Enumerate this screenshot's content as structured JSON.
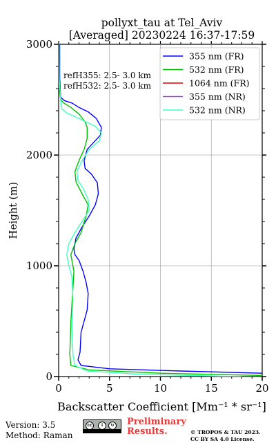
{
  "chart_data": {
    "type": "line",
    "title": [
      "pollyxt_tau at Tel_Aviv",
      "[Averaged] 20230224 16:37-17:59"
    ],
    "xlabel": "Backscatter Coefficient [Mm⁻¹ * sr⁻¹]",
    "ylabel": "Height (m)",
    "xlim": [
      0,
      20
    ],
    "ylim": [
      0,
      3000
    ],
    "xticks": [
      0,
      5,
      10,
      15,
      20
    ],
    "yticks": [
      0,
      1000,
      2000,
      3000
    ],
    "grid": true,
    "legend_position": "top-right",
    "annotations": [
      "refH355:  2.5- 3.0 km",
      "refH532:  2.5- 3.0 km"
    ],
    "series": [
      {
        "name": "355 nm (FR)",
        "color": "#0000ff",
        "x": [
          20,
          12,
          5,
          2.2,
          1.9,
          2.1,
          2.2,
          2.8,
          2.9,
          2.7,
          2.4,
          2.0,
          1.6,
          1.5,
          1.7,
          2.3,
          3.0,
          3.6,
          3.9,
          3.8,
          3.2,
          2.6,
          2.5,
          2.8,
          3.6,
          4.1,
          4.2,
          3.7,
          2.9,
          2.0,
          1.3,
          0.6,
          0.2,
          0.1,
          0.1
        ],
        "y": [
          30,
          50,
          70,
          100,
          150,
          220,
          400,
          600,
          750,
          850,
          950,
          1050,
          1100,
          1150,
          1250,
          1350,
          1450,
          1550,
          1650,
          1750,
          1830,
          1880,
          1950,
          2050,
          2130,
          2180,
          2250,
          2330,
          2390,
          2430,
          2470,
          2490,
          2520,
          2700,
          3000
        ]
      },
      {
        "name": "532 nm (FR)",
        "color": "#00c000",
        "x": [
          20,
          10,
          3,
          1.2,
          1.1,
          1.2,
          1.4,
          1.5,
          1.3,
          1.2,
          1.6,
          2.2,
          2.7,
          2.9,
          2.3,
          1.7,
          1.6,
          2.0,
          2.5,
          2.8,
          2.8,
          2.6,
          2.0,
          1.2,
          0.5,
          0.2,
          0.05,
          0.05
        ],
        "y": [
          10,
          30,
          60,
          100,
          200,
          500,
          800,
          950,
          1050,
          1100,
          1200,
          1300,
          1450,
          1550,
          1650,
          1760,
          1850,
          1950,
          2050,
          2150,
          2250,
          2300,
          2370,
          2430,
          2470,
          2500,
          2600,
          3000
        ]
      },
      {
        "name": "1064 nm (FR)",
        "color": "#e00000",
        "x": [],
        "y": []
      },
      {
        "name": "355 nm (NR)",
        "color": "#a040e0",
        "x": [],
        "y": []
      },
      {
        "name": "532 nm (NR)",
        "color": "#40ffc0",
        "x": [
          18,
          8,
          2.8,
          1.6,
          1.4,
          1.3,
          1.4,
          1.3,
          1.0,
          0.8,
          1.0,
          1.6,
          2.3,
          3.0,
          2.9,
          2.4,
          1.9,
          1.8,
          2.3,
          3.0,
          4.0,
          4.2,
          3.6,
          2.0,
          0.8,
          0.3,
          0.2,
          0.05,
          0.0
        ],
        "y": [
          0,
          20,
          50,
          100,
          200,
          450,
          700,
          900,
          1000,
          1100,
          1200,
          1300,
          1400,
          1500,
          1600,
          1700,
          1770,
          1850,
          1950,
          2050,
          2130,
          2200,
          2260,
          2330,
          2380,
          2420,
          2500,
          2700,
          3000
        ]
      }
    ]
  },
  "footer": {
    "version": "Version: 3.5",
    "method": "Method: Raman",
    "preliminary": [
      "Preliminary",
      "Results."
    ],
    "copyright": [
      "© TROPOS & TAU 2023.",
      "CC BY SA 4.0 License."
    ],
    "license_badge": "cc-by-sa-badge"
  }
}
